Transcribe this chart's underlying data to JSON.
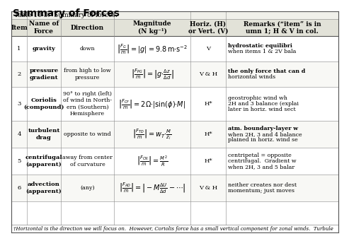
{
  "title": "Summary of Forces",
  "table_title": "Table 10-3.  Summary of forces.",
  "col_headers": [
    "Item",
    "Name of\nForce",
    "Direction",
    "Magnitude\n(N kg⁻¹)",
    "Horiz. (H)\nor Vert. (V)",
    "Remarks (“item” is in\numn 1; H & V in col."
  ],
  "rows": [
    {
      "item": "1",
      "name": "gravity",
      "direction": "down",
      "mag_math": "$\\left|\\frac{F_G}{m}\\right| = |g| = 9.8\\,\\mathrm{m{\\cdot}s^{-2}}$",
      "horiz": "V",
      "remarks": "hydrostatic equilibri\nwhen items 1 & 2V bala",
      "remarks_bold": false
    },
    {
      "item": "2",
      "name": "pressure\ngradient",
      "direction": "from high to low\npressure",
      "mag_math": "$\\left|\\frac{F_{PG}}{m}\\right| = \\left|g{\\cdot}\\frac{\\Delta z}{\\Delta d}\\right|$",
      "horiz": "V & H",
      "remarks": "the only force that can d\nhorizontal winds",
      "remarks_bold": false
    },
    {
      "item": "3",
      "name": "Coriolis\n(compound)",
      "direction": "90° to right (left)\nof wind in North-\nern (Southern)\nHemisphere",
      "mag_math": "$\\left|\\frac{F_{CF}}{m}\\right| = 2\\Omega{\\cdot}|\\sin(\\phi){\\cdot}M|$",
      "horiz": "H*",
      "remarks": "geostrophic wind wh\n2H and 3 balance (explai\nlater in horiz. wind sect",
      "remarks_bold": false
    },
    {
      "item": "4",
      "name": "turbulent\ndrag",
      "direction": "opposite to wind",
      "mag_math": "$\\left|\\frac{F_{TD}}{m}\\right| = w_T {\\cdot} \\frac{M}{z_i}$",
      "horiz": "H*",
      "remarks": "atm. boundary-layer w\nwhen 2H, 3 and 4 balance\nplained in horiz. wind se",
      "remarks_bold": false
    },
    {
      "item": "5",
      "name": "centrifugal\n(apparent)",
      "direction": "away from center\nof curvature",
      "mag_math": "$\\left|\\frac{F_{CN}}{m}\\right| = \\frac{M^2}{R}$",
      "horiz": "H*",
      "remarks": "centripetal = opposite\ncentrifugal.  Gradient w\nwhen 2H, 3 and 5 balar",
      "remarks_bold": false
    },
    {
      "item": "6",
      "name": "advection\n(apparent)",
      "direction": "(any)",
      "mag_math": "$\\left|\\frac{F_{AD}}{m}\\right| = \\left|-M\\frac{\\Delta U}{\\Delta d} - \\cdots\\right|$",
      "horiz": "V & H",
      "remarks": "neither creates nor dest\nmomentum; just moves",
      "remarks_bold": false
    }
  ],
  "footnote": "†Horizontal is the direction we will focus on.  However, Coriolis force has a small vertical component for zonal winds.  Turbule",
  "bg_color": "#ffffff",
  "header_bg": "#e0e0d8",
  "title_fontsize": 10,
  "table_title_fontsize": 6.5,
  "header_fontsize": 6.5,
  "cell_fontsize": 6.0,
  "math_fontsize": 7.0,
  "footnote_fontsize": 5.0
}
